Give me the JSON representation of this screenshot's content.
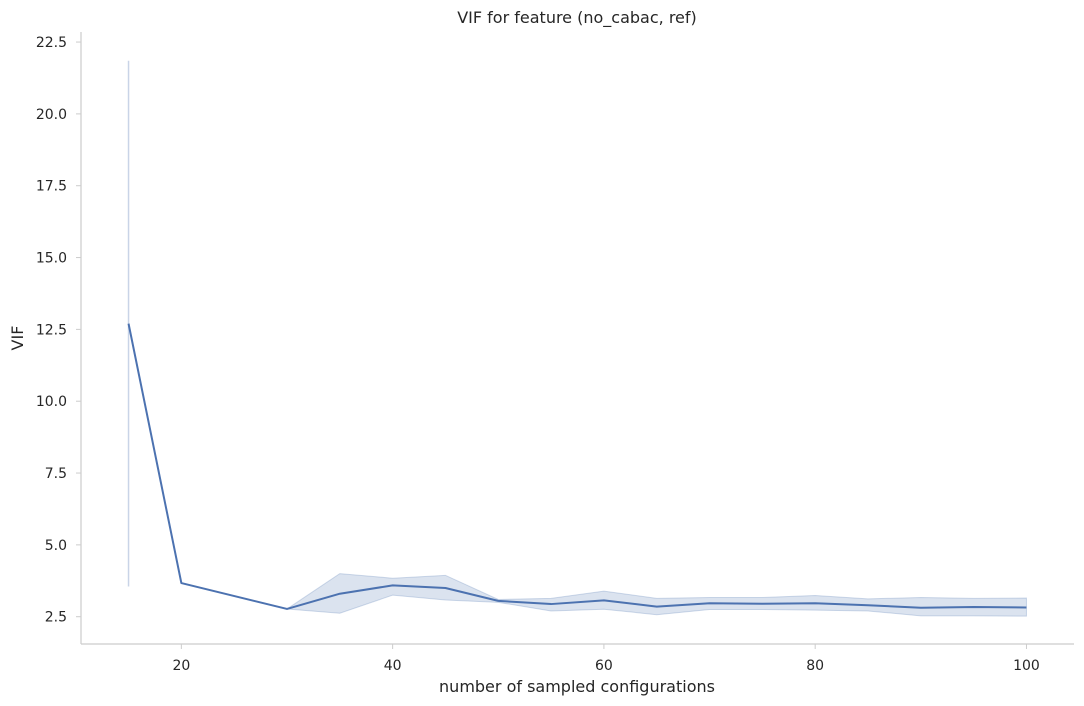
{
  "chart_data": {
    "type": "line",
    "title": "VIF for feature (no_cabac, ref)",
    "xlabel": "number of sampled configurations",
    "ylabel": "VIF",
    "xlim": [
      10.5,
      104.5
    ],
    "ylim": [
      1.55,
      22.85
    ],
    "xticks": [
      20,
      40,
      60,
      80,
      100
    ],
    "xtick_labels": [
      "20",
      "40",
      "60",
      "80",
      "100"
    ],
    "yticks": [
      2.5,
      5.0,
      7.5,
      10.0,
      12.5,
      15.0,
      17.5,
      20.0,
      22.5
    ],
    "ytick_labels": [
      "2.5",
      "5.0",
      "7.5",
      "10.0",
      "12.5",
      "15.0",
      "17.5",
      "20.0",
      "22.5"
    ],
    "grid": false,
    "series": [
      {
        "color": "#4c72b0",
        "band_color": "#4c72b0",
        "x": [
          15,
          20,
          30,
          35,
          40,
          45,
          50,
          55,
          60,
          65,
          70,
          75,
          80,
          85,
          90,
          95,
          100
        ],
        "y": [
          12.7,
          3.67,
          2.77,
          3.3,
          3.59,
          3.5,
          3.05,
          2.94,
          3.07,
          2.85,
          2.97,
          2.95,
          2.97,
          2.9,
          2.81,
          2.84,
          2.82
        ],
        "ci_low": [
          3.55,
          3.67,
          2.77,
          2.62,
          3.25,
          3.08,
          3.0,
          2.7,
          2.76,
          2.57,
          2.75,
          2.75,
          2.73,
          2.7,
          2.53,
          2.53,
          2.52
        ],
        "ci_high": [
          21.85,
          3.67,
          2.77,
          4.0,
          3.84,
          3.94,
          3.1,
          3.14,
          3.39,
          3.14,
          3.17,
          3.17,
          3.24,
          3.12,
          3.17,
          3.14,
          3.15
        ]
      }
    ]
  }
}
